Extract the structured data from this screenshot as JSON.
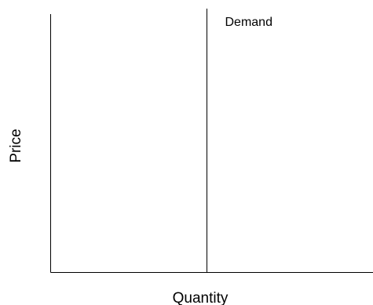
{
  "chart_data": {
    "type": "line",
    "title": "",
    "xlabel": "Quantity",
    "ylabel": "Price",
    "grid": false,
    "x_ticks": [],
    "y_ticks": [],
    "series": [
      {
        "name": "Demand",
        "orientation": "vertical",
        "x": 0.5
      }
    ],
    "xlim": [
      0,
      1
    ],
    "ylim": [
      0,
      1
    ]
  }
}
